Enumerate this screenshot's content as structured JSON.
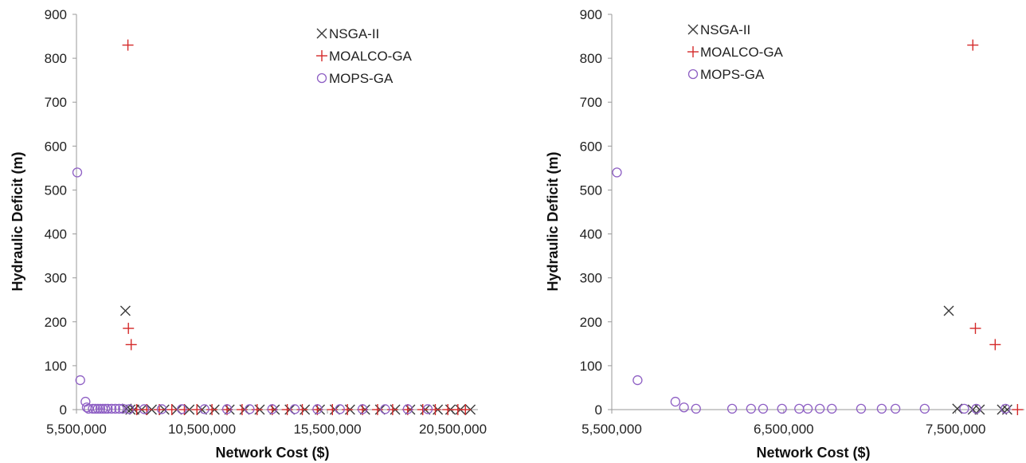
{
  "colors": {
    "NSGA-II": "#3a3a3a",
    "MOALCO-GA": "#d42a2a",
    "MOPS-GA": "#8e5fc4",
    "axis": "#999999"
  },
  "legend_placement": "top-right",
  "chart_data": [
    {
      "type": "scatter",
      "xlabel": "Network Cost ($)",
      "ylabel": "Hydraulic Deficit (m)",
      "xlim": [
        5500000,
        21500000
      ],
      "ylim": [
        0,
        900
      ],
      "xticks": [
        5500000,
        10500000,
        15500000,
        20500000
      ],
      "xtick_labels": [
        "5,500,000",
        "10,500,000",
        "15,500,000",
        "20,500,000"
      ],
      "yticks": [
        0,
        100,
        200,
        300,
        400,
        500,
        600,
        700,
        800,
        900
      ],
      "ytick_labels": [
        "0",
        "100",
        "200",
        "300",
        "400",
        "500",
        "600",
        "700",
        "800",
        "900"
      ],
      "grid": false,
      "series": [
        {
          "name": "NSGA-II",
          "marker": "x",
          "points": [
            [
              7450000,
              225
            ],
            [
              7500000,
              2
            ],
            [
              7650000,
              0
            ],
            [
              7800000,
              0
            ],
            [
              8100000,
              0
            ],
            [
              8500000,
              0
            ],
            [
              9000000,
              0
            ],
            [
              9500000,
              0
            ],
            [
              10000000,
              0
            ],
            [
              10500000,
              0
            ],
            [
              11000000,
              0
            ],
            [
              11600000,
              0
            ],
            [
              12200000,
              0
            ],
            [
              12800000,
              0
            ],
            [
              13400000,
              0
            ],
            [
              14000000,
              0
            ],
            [
              14600000,
              0
            ],
            [
              15200000,
              0
            ],
            [
              15800000,
              0
            ],
            [
              16400000,
              0
            ],
            [
              17000000,
              0
            ],
            [
              17600000,
              0
            ],
            [
              18200000,
              0
            ],
            [
              18800000,
              0
            ],
            [
              19400000,
              0
            ],
            [
              19900000,
              0
            ],
            [
              20400000,
              0
            ],
            [
              20800000,
              0
            ],
            [
              21200000,
              0
            ]
          ]
        },
        {
          "name": "MOALCO-GA",
          "marker": "+",
          "points": [
            [
              7550000,
              830
            ],
            [
              7570000,
              185
            ],
            [
              7680000,
              148
            ],
            [
              7900000,
              0
            ],
            [
              8300000,
              0
            ],
            [
              8800000,
              0
            ],
            [
              9300000,
              0
            ],
            [
              9800000,
              0
            ],
            [
              10300000,
              0
            ],
            [
              10900000,
              0
            ],
            [
              11500000,
              0
            ],
            [
              12100000,
              0
            ],
            [
              12700000,
              0
            ],
            [
              13300000,
              0
            ],
            [
              13900000,
              0
            ],
            [
              14500000,
              0
            ],
            [
              15100000,
              0
            ],
            [
              15700000,
              0
            ],
            [
              16300000,
              0
            ],
            [
              16900000,
              0
            ],
            [
              17500000,
              0
            ],
            [
              18100000,
              0
            ],
            [
              18700000,
              0
            ],
            [
              19300000,
              0
            ],
            [
              19800000,
              0
            ],
            [
              20300000,
              0
            ],
            [
              20700000,
              0
            ],
            [
              21000000,
              0
            ]
          ]
        },
        {
          "name": "MOPS-GA",
          "marker": "o",
          "points": [
            [
              5530000,
              540
            ],
            [
              5650000,
              67
            ],
            [
              5860000,
              18
            ],
            [
              5910000,
              5
            ],
            [
              5980000,
              2
            ],
            [
              6150000,
              2
            ],
            [
              6250000,
              2
            ],
            [
              6350000,
              2
            ],
            [
              6450000,
              2
            ],
            [
              6550000,
              2
            ],
            [
              6650000,
              2
            ],
            [
              6750000,
              2
            ],
            [
              6900000,
              2
            ],
            [
              7050000,
              2
            ],
            [
              7200000,
              2
            ],
            [
              7350000,
              2
            ],
            [
              7600000,
              1
            ],
            [
              8200000,
              1
            ],
            [
              8900000,
              1
            ],
            [
              9700000,
              1
            ],
            [
              10600000,
              1
            ],
            [
              11500000,
              1
            ],
            [
              12400000,
              1
            ],
            [
              13300000,
              1
            ],
            [
              14200000,
              1
            ],
            [
              15100000,
              1
            ],
            [
              16000000,
              1
            ],
            [
              16900000,
              1
            ],
            [
              17800000,
              1
            ],
            [
              18700000,
              1
            ],
            [
              19500000,
              1
            ]
          ]
        }
      ]
    },
    {
      "type": "scatter",
      "xlabel": "Network Cost ($)",
      "ylabel": "Hydraulic Deficit (m)",
      "xlim": [
        5500000,
        7900000
      ],
      "ylim": [
        0,
        900
      ],
      "xticks": [
        5500000,
        6500000,
        7500000
      ],
      "xtick_labels": [
        "5,500,000",
        "6,500,000",
        "7,500,000"
      ],
      "yticks": [
        0,
        100,
        200,
        300,
        400,
        500,
        600,
        700,
        800,
        900
      ],
      "ytick_labels": [
        "0",
        "100",
        "200",
        "300",
        "400",
        "500",
        "600",
        "700",
        "800",
        "900"
      ],
      "grid": false,
      "series": [
        {
          "name": "NSGA-II",
          "marker": "x",
          "points": [
            [
              7460000,
              225
            ],
            [
              7510000,
              2
            ],
            [
              7600000,
              0
            ],
            [
              7640000,
              0
            ],
            [
              7770000,
              0
            ],
            [
              7800000,
              0
            ]
          ]
        },
        {
          "name": "MOALCO-GA",
          "marker": "+",
          "points": [
            [
              7600000,
              830
            ],
            [
              7615000,
              185
            ],
            [
              7730000,
              148
            ],
            [
              7860000,
              0
            ]
          ]
        },
        {
          "name": "MOPS-GA",
          "marker": "o",
          "points": [
            [
              5530000,
              540
            ],
            [
              5650000,
              67
            ],
            [
              5870000,
              18
            ],
            [
              5920000,
              5
            ],
            [
              5990000,
              2
            ],
            [
              6200000,
              2
            ],
            [
              6310000,
              2
            ],
            [
              6380000,
              2
            ],
            [
              6490000,
              2
            ],
            [
              6590000,
              2
            ],
            [
              6640000,
              2
            ],
            [
              6710000,
              2
            ],
            [
              6780000,
              2
            ],
            [
              6950000,
              2
            ],
            [
              7070000,
              2
            ],
            [
              7150000,
              2
            ],
            [
              7320000,
              2
            ],
            [
              7550000,
              2
            ],
            [
              7620000,
              2
            ],
            [
              7790000,
              2
            ]
          ]
        }
      ]
    }
  ]
}
